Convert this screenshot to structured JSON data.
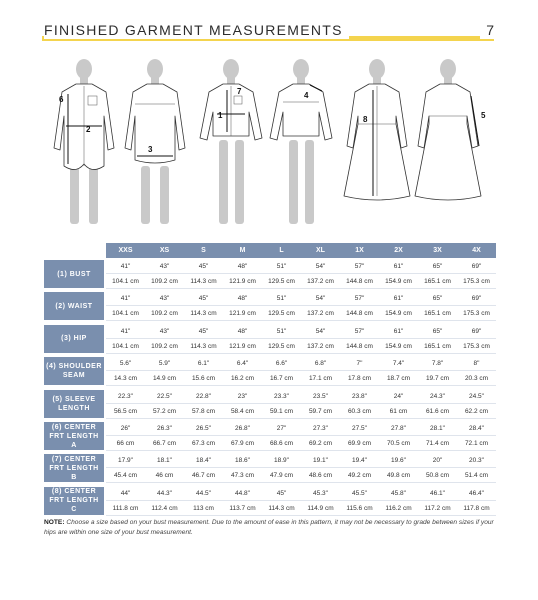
{
  "header": {
    "title": "FINISHED GARMENT MEASUREMENTS",
    "page": "7"
  },
  "figure": {
    "markers": [
      "1",
      "2",
      "3",
      "4",
      "5",
      "6",
      "7",
      "8"
    ]
  },
  "table": {
    "sizes": [
      "XXS",
      "XS",
      "S",
      "M",
      "L",
      "XL",
      "1X",
      "2X",
      "3X",
      "4X"
    ],
    "rows": [
      {
        "label": "(1) BUST",
        "in": [
          "41\"",
          "43\"",
          "45\"",
          "48\"",
          "51\"",
          "54\"",
          "57\"",
          "61\"",
          "65\"",
          "69\""
        ],
        "cm": [
          "104.1 cm",
          "109.2 cm",
          "114.3 cm",
          "121.9 cm",
          "129.5 cm",
          "137.2 cm",
          "144.8 cm",
          "154.9 cm",
          "165.1 cm",
          "175.3 cm"
        ]
      },
      {
        "label": "(2) WAIST",
        "in": [
          "41\"",
          "43\"",
          "45\"",
          "48\"",
          "51\"",
          "54\"",
          "57\"",
          "61\"",
          "65\"",
          "69\""
        ],
        "cm": [
          "104.1 cm",
          "109.2 cm",
          "114.3 cm",
          "121.9 cm",
          "129.5 cm",
          "137.2 cm",
          "144.8 cm",
          "154.9 cm",
          "165.1 cm",
          "175.3 cm"
        ]
      },
      {
        "label": "(3) HIP",
        "in": [
          "41\"",
          "43\"",
          "45\"",
          "48\"",
          "51\"",
          "54\"",
          "57\"",
          "61\"",
          "65\"",
          "69\""
        ],
        "cm": [
          "104.1 cm",
          "109.2 cm",
          "114.3 cm",
          "121.9 cm",
          "129.5 cm",
          "137.2 cm",
          "144.8 cm",
          "154.9 cm",
          "165.1 cm",
          "175.3 cm"
        ]
      },
      {
        "label": "(4) SHOULDER SEAM",
        "in": [
          "5.6\"",
          "5.9\"",
          "6.1\"",
          "6.4\"",
          "6.6\"",
          "6.8\"",
          "7\"",
          "7.4\"",
          "7.8\"",
          "8\""
        ],
        "cm": [
          "14.3 cm",
          "14.9 cm",
          "15.6 cm",
          "16.2 cm",
          "16.7 cm",
          "17.1 cm",
          "17.8 cm",
          "18.7 cm",
          "19.7 cm",
          "20.3 cm"
        ]
      },
      {
        "label": "(5) SLEEVE LENGTH",
        "in": [
          "22.3\"",
          "22.5\"",
          "22.8\"",
          "23\"",
          "23.3\"",
          "23.5\"",
          "23.8\"",
          "24\"",
          "24.3\"",
          "24.5\""
        ],
        "cm": [
          "56.5 cm",
          "57.2 cm",
          "57.8 cm",
          "58.4 cm",
          "59.1 cm",
          "59.7 cm",
          "60.3 cm",
          "61 cm",
          "61.6 cm",
          "62.2 cm"
        ]
      },
      {
        "label": "(6) CENTER FRT LENGTH A",
        "in": [
          "26\"",
          "26.3\"",
          "26.5\"",
          "26.8\"",
          "27\"",
          "27.3\"",
          "27.5\"",
          "27.8\"",
          "28.1\"",
          "28.4\""
        ],
        "cm": [
          "66 cm",
          "66.7 cm",
          "67.3 cm",
          "67.9 cm",
          "68.6 cm",
          "69.2 cm",
          "69.9 cm",
          "70.5 cm",
          "71.4 cm",
          "72.1 cm"
        ]
      },
      {
        "label": "(7) CENTER FRT LENGTH B",
        "in": [
          "17.9\"",
          "18.1\"",
          "18.4\"",
          "18.6\"",
          "18.9\"",
          "19.1\"",
          "19.4\"",
          "19.6\"",
          "20\"",
          "20.3\""
        ],
        "cm": [
          "45.4 cm",
          "46 cm",
          "46.7 cm",
          "47.3 cm",
          "47.9 cm",
          "48.6 cm",
          "49.2 cm",
          "49.8 cm",
          "50.8 cm",
          "51.4 cm"
        ]
      },
      {
        "label": "(8) CENTER FRT LENGTH C",
        "in": [
          "44\"",
          "44.3\"",
          "44.5\"",
          "44.8\"",
          "45\"",
          "45.3\"",
          "45.5\"",
          "45.8\"",
          "46.1\"",
          "46.4\""
        ],
        "cm": [
          "111.8 cm",
          "112.4 cm",
          "113 cm",
          "113.7 cm",
          "114.3 cm",
          "114.9 cm",
          "115.6 cm",
          "116.2 cm",
          "117.2 cm",
          "117.8 cm"
        ]
      }
    ]
  },
  "note": {
    "label": "NOTE:",
    "text": "Choose a size based on your bust measurement. Due to the amount of ease in this pattern, it may not be necessary to grade between sizes if your hips are within one size of your bust measurement."
  }
}
